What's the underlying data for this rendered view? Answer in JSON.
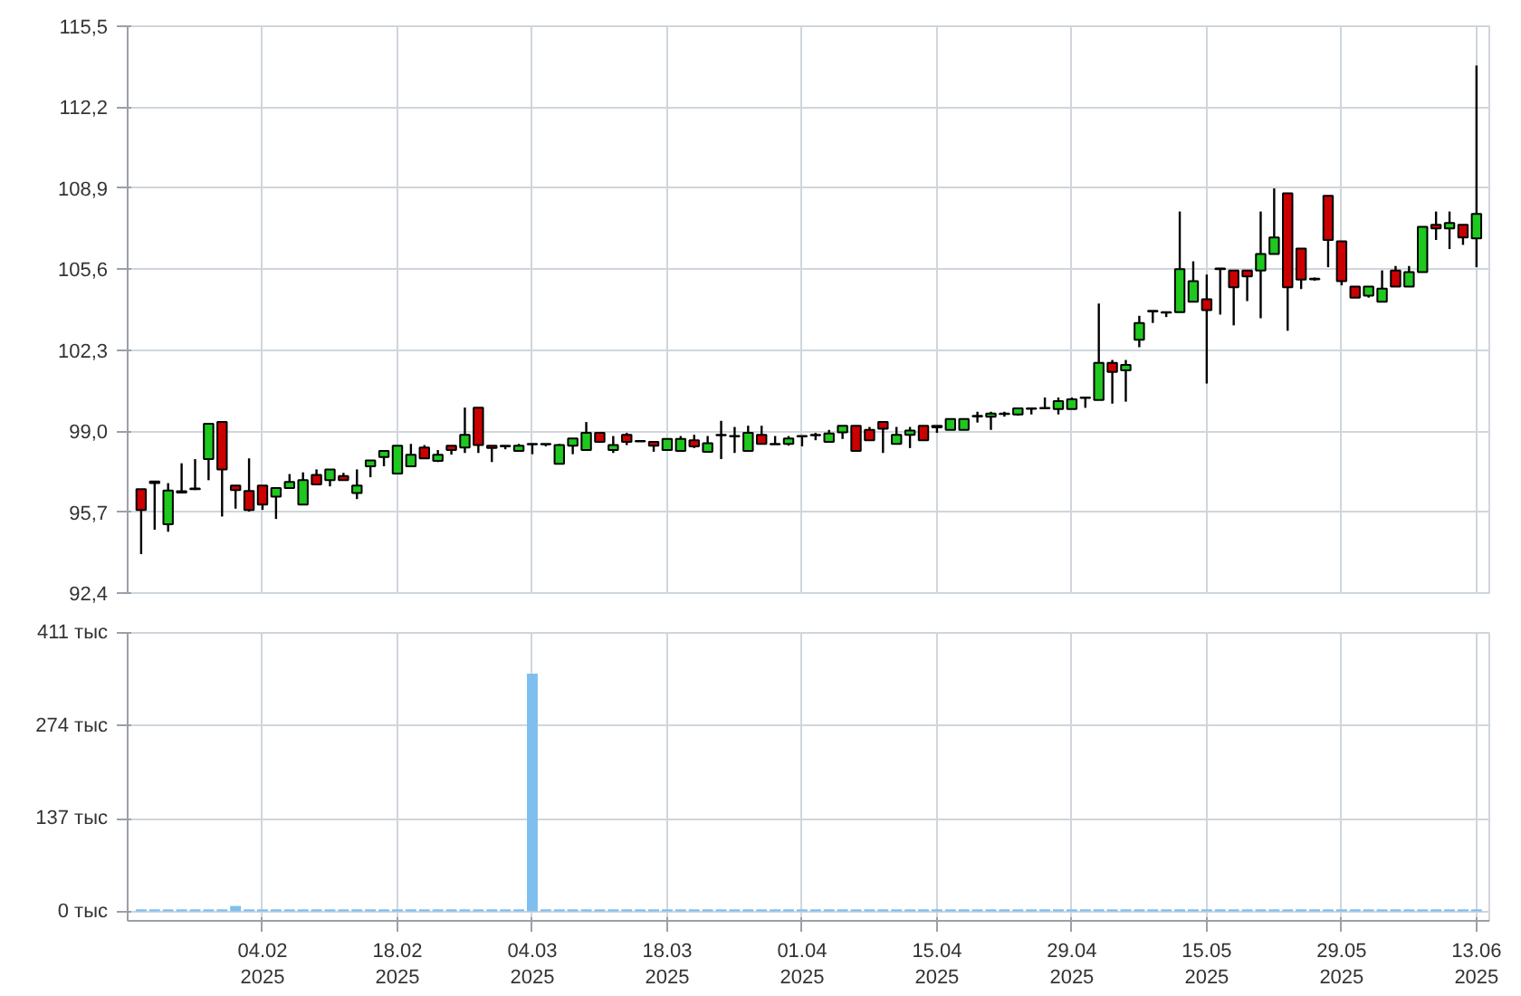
{
  "chart_data": [
    {
      "type": "candlestick",
      "grid": true,
      "tick_labels": "y",
      "categories": [
        null,
        null,
        null,
        null,
        null,
        null,
        null,
        null,
        null,
        null,
        null,
        null,
        null,
        null,
        null,
        null,
        null,
        null,
        null,
        null,
        null,
        null,
        null,
        null,
        null,
        null,
        null,
        null,
        null,
        null,
        null,
        null,
        null,
        null,
        null,
        null,
        null,
        null,
        null,
        null,
        null,
        null,
        null,
        null,
        null,
        null,
        null,
        null,
        null,
        null,
        null,
        null,
        null,
        null,
        null,
        null,
        null,
        null,
        null,
        null,
        null,
        null,
        null,
        null,
        null,
        null,
        null,
        null,
        null,
        null,
        null,
        null,
        null,
        null,
        null,
        null,
        null,
        null,
        null,
        null,
        null,
        null,
        null,
        null,
        null,
        null,
        null,
        null,
        null,
        null,
        null,
        null,
        null,
        null,
        null,
        null,
        null,
        null,
        null,
        null
      ],
      "ylim": [
        92.4,
        115.5
      ],
      "yticks": [
        {
          "value": 92.4,
          "label": "92,4"
        },
        {
          "value": 95.7,
          "label": "95,7"
        },
        {
          "value": 99.0,
          "label": "99,0"
        },
        {
          "value": 102.3,
          "label": "102,3"
        },
        {
          "value": 105.6,
          "label": "105,6"
        },
        {
          "value": 108.9,
          "label": "108,9"
        },
        {
          "value": 112.2,
          "label": "112,2"
        },
        {
          "value": 115.5,
          "label": "115,5"
        }
      ],
      "ohlc": [
        [
          96.63,
          96.63,
          93.99,
          95.79
        ],
        [
          96.95,
          96.95,
          94.98,
          96.88
        ],
        [
          95.2,
          96.88,
          94.9,
          96.58
        ],
        [
          96.5,
          97.69,
          96.5,
          96.55
        ],
        [
          96.63,
          97.86,
          96.6,
          96.66
        ],
        [
          97.86,
          99.3,
          97.0,
          99.3
        ],
        [
          99.37,
          99.37,
          95.52,
          97.44
        ],
        [
          96.78,
          96.78,
          95.84,
          96.6
        ],
        [
          96.56,
          97.89,
          95.72,
          95.79
        ],
        [
          96.78,
          96.78,
          95.79,
          96.01
        ],
        [
          96.33,
          96.68,
          95.42,
          96.68
        ],
        [
          96.68,
          97.25,
          96.68,
          96.93
        ],
        [
          96.01,
          97.32,
          96.01,
          97.0
        ],
        [
          97.22,
          97.44,
          96.83,
          96.83
        ],
        [
          97.0,
          97.44,
          96.75,
          97.44
        ],
        [
          97.17,
          97.3,
          97.0,
          97.0
        ],
        [
          96.48,
          97.44,
          96.23,
          96.78
        ],
        [
          97.57,
          97.81,
          97.12,
          97.81
        ],
        [
          97.94,
          98.19,
          97.57,
          98.19
        ],
        [
          97.27,
          98.41,
          97.27,
          98.41
        ],
        [
          97.57,
          98.48,
          97.57,
          98.04
        ],
        [
          98.33,
          98.43,
          97.89,
          97.89
        ],
        [
          97.79,
          98.23,
          97.74,
          98.04
        ],
        [
          98.41,
          98.41,
          98.04,
          98.23
        ],
        [
          98.33,
          99.96,
          98.11,
          98.85
        ],
        [
          99.96,
          99.96,
          98.11,
          98.43
        ],
        [
          98.41,
          98.41,
          97.74,
          98.31
        ],
        [
          98.41,
          98.41,
          98.26,
          98.38
        ],
        [
          98.19,
          98.48,
          98.19,
          98.41
        ],
        [
          98.48,
          98.48,
          98.06,
          98.46
        ],
        [
          98.48,
          98.48,
          98.38,
          98.46
        ],
        [
          97.67,
          98.48,
          97.67,
          98.43
        ],
        [
          98.41,
          98.7,
          98.06,
          98.7
        ],
        [
          98.23,
          99.37,
          98.23,
          98.93
        ],
        [
          98.93,
          98.93,
          98.56,
          98.56
        ],
        [
          98.23,
          98.8,
          98.11,
          98.43
        ],
        [
          98.85,
          98.93,
          98.43,
          98.56
        ],
        [
          98.6,
          98.6,
          98.58,
          98.58
        ],
        [
          98.56,
          98.56,
          98.16,
          98.41
        ],
        [
          98.23,
          98.68,
          98.23,
          98.68
        ],
        [
          98.19,
          98.8,
          98.19,
          98.68
        ],
        [
          98.63,
          98.85,
          98.31,
          98.38
        ],
        [
          98.16,
          98.8,
          98.16,
          98.51
        ],
        [
          98.85,
          99.42,
          97.86,
          98.83
        ],
        [
          98.8,
          99.17,
          98.11,
          98.78
        ],
        [
          98.19,
          99.22,
          98.19,
          98.93
        ],
        [
          98.85,
          99.22,
          98.48,
          98.48
        ],
        [
          98.48,
          98.8,
          98.46,
          98.46
        ],
        [
          98.48,
          98.8,
          98.41,
          98.7
        ],
        [
          98.8,
          98.8,
          98.38,
          98.78
        ],
        [
          98.85,
          98.93,
          98.63,
          98.83
        ],
        [
          98.56,
          99.05,
          98.56,
          98.9
        ],
        [
          98.95,
          99.22,
          98.68,
          99.22
        ],
        [
          99.22,
          99.22,
          98.19,
          98.19
        ],
        [
          99.05,
          99.17,
          98.63,
          98.63
        ],
        [
          99.37,
          99.37,
          98.11,
          99.1
        ],
        [
          98.48,
          99.17,
          98.48,
          98.85
        ],
        [
          98.85,
          99.17,
          98.31,
          99.02
        ],
        [
          99.22,
          99.22,
          98.63,
          98.63
        ],
        [
          99.15,
          99.22,
          98.93,
          99.22
        ],
        [
          99.05,
          99.49,
          99.05,
          99.49
        ],
        [
          99.05,
          99.49,
          99.05,
          99.49
        ],
        [
          99.62,
          99.79,
          99.35,
          99.6
        ],
        [
          99.59,
          99.79,
          99.05,
          99.72
        ],
        [
          99.72,
          99.79,
          99.59,
          99.7
        ],
        [
          99.68,
          99.93,
          99.63,
          99.93
        ],
        [
          99.93,
          99.93,
          99.68,
          99.91
        ],
        [
          99.95,
          100.37,
          99.93,
          99.93
        ],
        [
          99.9,
          100.37,
          99.68,
          100.22
        ],
        [
          99.9,
          100.37,
          99.9,
          100.3
        ],
        [
          100.37,
          100.37,
          99.95,
          100.35
        ],
        [
          100.27,
          104.2,
          100.27,
          101.78
        ],
        [
          101.78,
          101.9,
          100.12,
          101.41
        ],
        [
          101.48,
          101.9,
          100.2,
          101.7
        ],
        [
          102.72,
          103.7,
          102.42,
          103.41
        ],
        [
          103.9,
          103.9,
          103.41,
          103.88
        ],
        [
          103.85,
          103.85,
          103.65,
          103.83
        ],
        [
          103.85,
          107.95,
          103.85,
          105.6
        ],
        [
          104.27,
          105.92,
          104.27,
          105.11
        ],
        [
          104.37,
          105.38,
          100.94,
          103.93
        ],
        [
          105.63,
          105.63,
          103.75,
          105.6
        ],
        [
          105.55,
          105.55,
          103.31,
          104.86
        ],
        [
          105.55,
          105.55,
          104.3,
          105.31
        ],
        [
          105.55,
          107.95,
          103.6,
          106.22
        ],
        [
          106.22,
          108.89,
          106.22,
          106.89
        ],
        [
          108.69,
          108.69,
          103.09,
          104.86
        ],
        [
          106.44,
          106.44,
          104.79,
          105.18
        ],
        [
          105.21,
          105.26,
          105.13,
          105.19
        ],
        [
          108.59,
          108.59,
          105.68,
          106.79
        ],
        [
          106.74,
          106.74,
          104.94,
          105.11
        ],
        [
          104.89,
          104.89,
          104.44,
          104.44
        ],
        [
          104.52,
          104.89,
          104.44,
          104.89
        ],
        [
          104.27,
          105.55,
          104.27,
          104.81
        ],
        [
          105.55,
          105.73,
          104.89,
          104.89
        ],
        [
          104.89,
          105.73,
          104.89,
          105.48
        ],
        [
          105.48,
          107.33,
          105.48,
          107.33
        ],
        [
          107.41,
          107.95,
          106.79,
          107.26
        ],
        [
          107.26,
          107.95,
          106.42,
          107.48
        ],
        [
          107.41,
          107.41,
          106.59,
          106.89
        ],
        [
          106.86,
          113.9,
          105.68,
          107.85
        ]
      ],
      "colors": [
        "#cc0000",
        "#cc0000",
        "#1ec81e",
        "#1ec81e",
        "#1ec81e",
        "#1ec81e",
        "#cc0000",
        "#cc0000",
        "#cc0000",
        "#cc0000",
        "#1ec81e",
        "#1ec81e",
        "#1ec81e",
        "#cc0000",
        "#1ec81e",
        "#cc0000",
        "#1ec81e",
        "#1ec81e",
        "#1ec81e",
        "#1ec81e",
        "#1ec81e",
        "#cc0000",
        "#1ec81e",
        "#cc0000",
        "#1ec81e",
        "#cc0000",
        "#cc0000",
        "#cc0000",
        "#1ec81e",
        "#cc0000",
        "#cc0000",
        "#1ec81e",
        "#1ec81e",
        "#1ec81e",
        "#cc0000",
        "#1ec81e",
        "#cc0000",
        "#cc0000",
        "#cc0000",
        "#1ec81e",
        "#1ec81e",
        "#cc0000",
        "#1ec81e",
        "#cc0000",
        "#cc0000",
        "#1ec81e",
        "#cc0000",
        "#cc0000",
        "#1ec81e",
        "#cc0000",
        "#cc0000",
        "#1ec81e",
        "#1ec81e",
        "#cc0000",
        "#cc0000",
        "#cc0000",
        "#1ec81e",
        "#1ec81e",
        "#cc0000",
        "#1ec81e",
        "#1ec81e",
        "#1ec81e",
        "#cc0000",
        "#1ec81e",
        "#cc0000",
        "#1ec81e",
        "#cc0000",
        "#cc0000",
        "#1ec81e",
        "#1ec81e",
        "#cc0000",
        "#1ec81e",
        "#cc0000",
        "#1ec81e",
        "#1ec81e",
        "#cc0000",
        "#cc0000",
        "#1ec81e",
        "#1ec81e",
        "#cc0000",
        "#cc0000",
        "#cc0000",
        "#cc0000",
        "#1ec81e",
        "#1ec81e",
        "#cc0000",
        "#cc0000",
        "#cc0000",
        "#cc0000",
        "#cc0000",
        "#cc0000",
        "#1ec81e",
        "#1ec81e",
        "#cc0000",
        "#1ec81e",
        "#1ec81e",
        "#cc0000",
        "#1ec81e",
        "#cc0000",
        "#1ec81e"
      ]
    },
    {
      "type": "bar",
      "grid": true,
      "color": "#7fbfef",
      "categories": [
        null,
        null,
        null,
        null,
        null,
        null,
        null,
        null,
        null,
        "04.02\n2025",
        null,
        null,
        null,
        null,
        null,
        null,
        null,
        null,
        null,
        "18.02\n2025",
        null,
        null,
        null,
        null,
        null,
        null,
        null,
        null,
        null,
        "04.03\n2025",
        null,
        null,
        null,
        null,
        null,
        null,
        null,
        null,
        null,
        "18.03\n2025",
        null,
        null,
        null,
        null,
        null,
        null,
        null,
        null,
        null,
        "01.04\n2025",
        null,
        null,
        null,
        null,
        null,
        null,
        null,
        null,
        null,
        "15.04\n2025",
        null,
        null,
        null,
        null,
        null,
        null,
        null,
        null,
        null,
        "29.04\n2025",
        null,
        null,
        null,
        null,
        null,
        null,
        null,
        null,
        null,
        "15.05\n2025",
        null,
        null,
        null,
        null,
        null,
        null,
        null,
        null,
        null,
        "29.05\n2025",
        null,
        null,
        null,
        null,
        null,
        null,
        null,
        null,
        null,
        "13.06\n2025"
      ],
      "ylim": [
        -14,
        411
      ],
      "yticks": [
        {
          "value": 0,
          "label": "0 тыс"
        },
        {
          "value": 137,
          "label": "137 тыс"
        },
        {
          "value": 274,
          "label": "274 тыс"
        },
        {
          "value": 411,
          "label": "411 тыс"
        }
      ],
      "values": [
        3,
        3,
        3,
        3,
        3,
        3,
        3,
        8,
        3,
        3,
        3,
        3,
        3,
        3,
        3,
        3,
        3,
        3,
        3,
        3,
        3,
        3,
        3,
        3,
        3,
        3,
        3,
        3,
        3,
        351,
        3,
        3,
        3,
        3,
        3,
        3,
        3,
        3,
        3,
        3,
        3,
        3,
        3,
        3,
        3,
        3,
        3,
        3,
        3,
        3,
        3,
        3,
        3,
        3,
        3,
        3,
        3,
        3,
        3,
        3,
        3,
        3,
        3,
        3,
        3,
        3,
        3,
        3,
        3,
        3,
        3,
        3,
        3,
        3,
        3,
        3,
        3,
        3,
        3,
        3,
        3,
        3,
        3,
        3,
        3,
        3,
        3,
        3,
        3,
        3,
        3,
        3,
        3,
        3,
        3,
        3,
        3,
        3,
        3,
        3
      ]
    }
  ]
}
